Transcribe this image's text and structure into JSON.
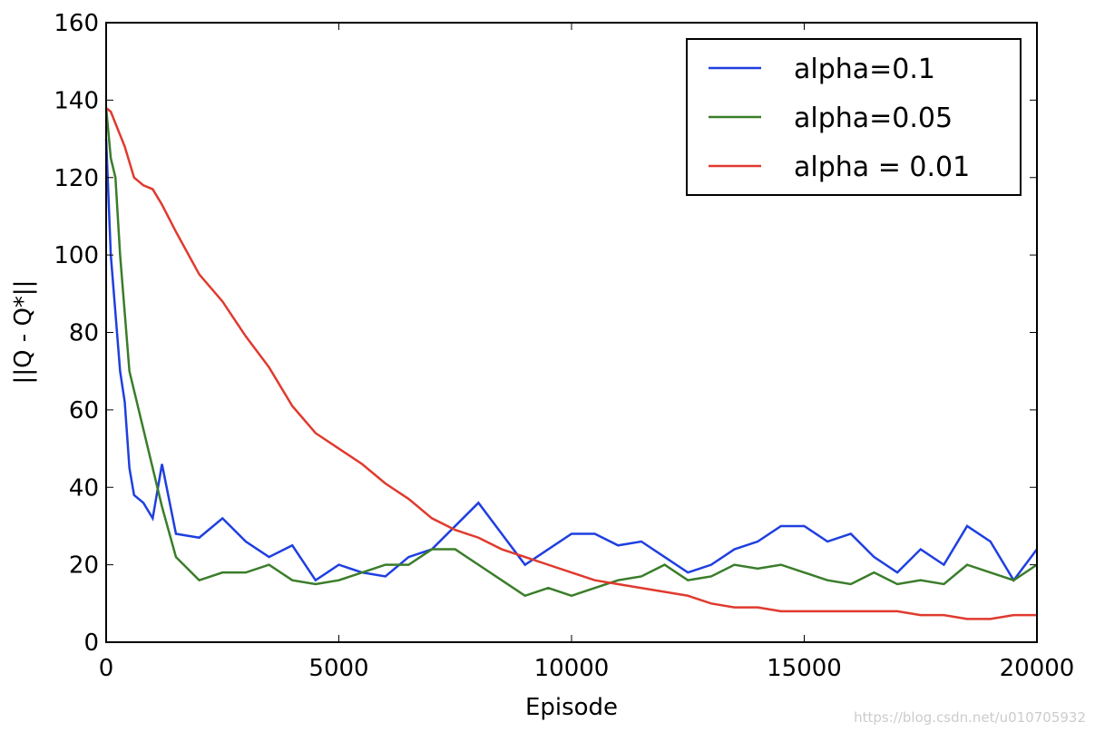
{
  "chart_data": {
    "type": "line",
    "xlabel": "Episode",
    "ylabel": "||Q - Q*||",
    "x": [
      0,
      100,
      200,
      300,
      400,
      500,
      600,
      800,
      1000,
      1200,
      1500,
      2000,
      2500,
      3000,
      3500,
      4000,
      4500,
      5000,
      5500,
      6000,
      6500,
      7000,
      7500,
      8000,
      8500,
      9000,
      9500,
      10000,
      10500,
      11000,
      11500,
      12000,
      12500,
      13000,
      13500,
      14000,
      14500,
      15000,
      15500,
      16000,
      16500,
      17000,
      17500,
      18000,
      18500,
      19000,
      19500,
      20000
    ],
    "series": [
      {
        "name": "alpha=0.1",
        "color": "#1f3fe0",
        "values": [
          130,
          100,
          85,
          70,
          62,
          45,
          38,
          36,
          32,
          46,
          28,
          27,
          32,
          26,
          22,
          25,
          16,
          20,
          18,
          17,
          22,
          24,
          30,
          36,
          28,
          20,
          24,
          28,
          28,
          25,
          26,
          22,
          18,
          20,
          24,
          26,
          30,
          30,
          26,
          28,
          22,
          18,
          24,
          20,
          30,
          26,
          16,
          24
        ]
      },
      {
        "name": "alpha=0.05",
        "color": "#3a7d2a",
        "values": [
          138,
          125,
          120,
          100,
          85,
          70,
          65,
          55,
          45,
          35,
          22,
          16,
          18,
          18,
          20,
          16,
          15,
          16,
          18,
          20,
          20,
          24,
          24,
          20,
          16,
          12,
          14,
          12,
          14,
          16,
          17,
          20,
          16,
          17,
          20,
          19,
          20,
          18,
          16,
          15,
          18,
          15,
          16,
          15,
          20,
          18,
          16,
          20
        ]
      },
      {
        "name": "alpha = 0.01",
        "color": "#e03a2e",
        "values": [
          138,
          137,
          134,
          131,
          128,
          124,
          120,
          118,
          117,
          113,
          106,
          95,
          88,
          79,
          71,
          61,
          54,
          50,
          46,
          41,
          37,
          32,
          29,
          27,
          24,
          22,
          20,
          18,
          16,
          15,
          14,
          13,
          12,
          10,
          9,
          9,
          8,
          8,
          8,
          8,
          8,
          8,
          7,
          7,
          6,
          6,
          7,
          7
        ]
      }
    ],
    "xlim": [
      0,
      20000
    ],
    "xticks": [
      0,
      5000,
      10000,
      15000,
      20000
    ],
    "ylim": [
      0,
      160
    ],
    "yticks": [
      0,
      20,
      40,
      60,
      80,
      100,
      120,
      140,
      160
    ],
    "legend": "upper right",
    "watermark": "https://blog.csdn.net/u010705932"
  }
}
